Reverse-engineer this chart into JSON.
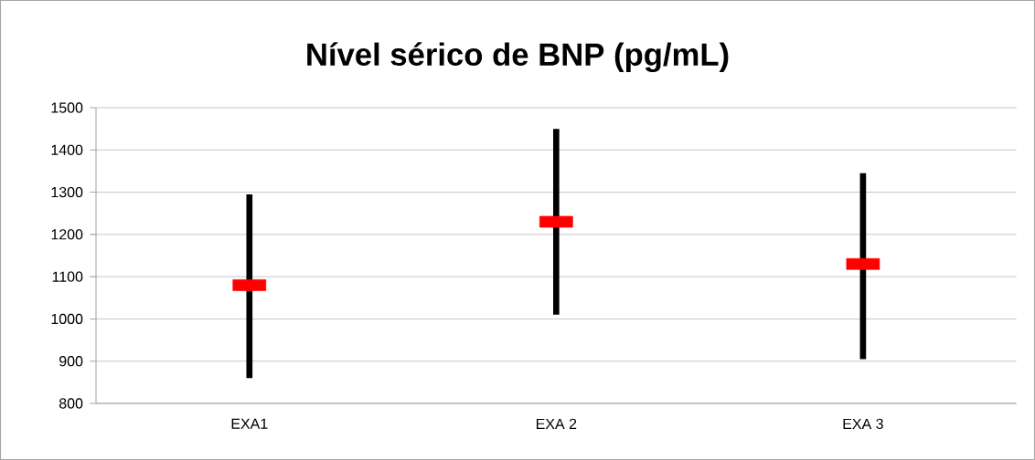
{
  "chart_data": {
    "type": "scatter",
    "title": "Nível sérico de BNP (pg/mL)",
    "categories": [
      "EXA1",
      "EXA 2",
      "EXA 3"
    ],
    "values": [
      1080,
      1230,
      1130
    ],
    "errors": [
      [
        860,
        1295
      ],
      [
        1010,
        1450
      ],
      [
        905,
        1345
      ]
    ],
    "color": "#ff0000",
    "ylim": [
      800,
      1500
    ],
    "yticks": [
      800,
      900,
      1000,
      1100,
      1200,
      1300,
      1400,
      1500
    ],
    "grid": "y"
  }
}
